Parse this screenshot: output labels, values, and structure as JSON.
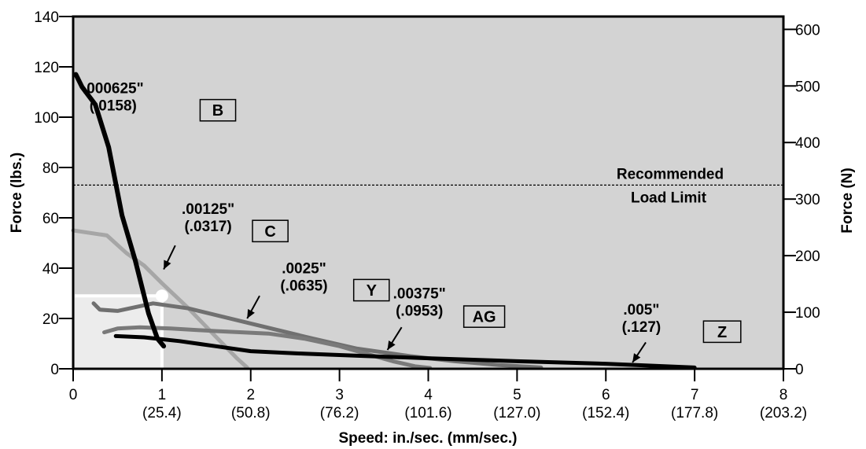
{
  "chart_data": {
    "type": "line",
    "xlabel": "Speed:  in./sec.  (mm/sec.)",
    "ylabel": "Force (lbs.)",
    "y2label": "Force (N)",
    "xlim": [
      0,
      8
    ],
    "ylim": [
      0,
      140
    ],
    "y2lim": [
      0,
      622.75
    ],
    "x_ticks": [
      0,
      1,
      2,
      3,
      4,
      5,
      6,
      7,
      8
    ],
    "x_tick_labels": [
      "0",
      "1",
      "2",
      "3",
      "4",
      "5",
      "6",
      "7",
      "8"
    ],
    "x_tick_sublabels": [
      "",
      "(25.4)",
      "(50.8)",
      "(76.2)",
      "(101.6)",
      "(127.0)",
      "(152.4)",
      "(177.8)",
      "(203.2)"
    ],
    "y_ticks": [
      0,
      20,
      40,
      60,
      80,
      100,
      120,
      140
    ],
    "y2_ticks": [
      0,
      100,
      200,
      300,
      400,
      500,
      600
    ],
    "grid": false,
    "background": "#d3d3d3",
    "reference_line": {
      "y": 73,
      "label_lines": [
        "Recommended",
        "Load Limit"
      ]
    },
    "highlight": {
      "x": 1.0,
      "y": 29
    },
    "series": [
      {
        "name": "B",
        "color": "#000000",
        "width": 6,
        "x": [
          0.03,
          0.1,
          0.25,
          0.4,
          0.55,
          0.7,
          0.85,
          0.95,
          1.02
        ],
        "y": [
          117,
          112,
          105,
          88,
          61,
          43,
          22,
          12,
          9
        ]
      },
      {
        "name": "C",
        "color": "#a6a6a6",
        "width": 5,
        "x": [
          0.0,
          0.38,
          0.6,
          0.8,
          1.0,
          1.3,
          1.6,
          1.85,
          1.96
        ],
        "y": [
          55,
          53,
          46,
          41,
          34,
          24,
          13,
          4,
          0.5
        ]
      },
      {
        "name": "Y",
        "color": "#707070",
        "width": 5,
        "x": [
          0.23,
          0.3,
          0.5,
          0.9,
          1.3,
          2.0,
          2.7,
          3.2,
          3.8,
          4.3,
          4.8,
          5.27
        ],
        "y": [
          26,
          23.5,
          23,
          26,
          24,
          18,
          12,
          8,
          5,
          3,
          1.5,
          0.5
        ]
      },
      {
        "name": "AG",
        "color": "#7a7a7a",
        "width": 5,
        "x": [
          0.35,
          0.5,
          0.75,
          1.1,
          1.6,
          2.2,
          2.6,
          3.0,
          3.3,
          3.6,
          3.85,
          4.02
        ],
        "y": [
          14.5,
          16,
          16.5,
          16,
          15,
          14,
          12,
          9,
          6,
          3,
          1,
          0.3
        ]
      },
      {
        "name": "Z",
        "color": "#000000",
        "width": 5,
        "x": [
          0.48,
          0.8,
          1.2,
          1.6,
          2.0,
          2.6,
          3.2,
          4.0,
          5.0,
          6.0,
          7.0
        ],
        "y": [
          13,
          12.5,
          11,
          9,
          7,
          6,
          5.2,
          4.2,
          3,
          2,
          0.5
        ]
      }
    ],
    "annotations": [
      {
        "id": "B",
        "line1": ".000625\"",
        "line2": "(.0158)",
        "box": "B",
        "tx": 0.45,
        "ty": 109.5,
        "bx": 1.43,
        "by": 107,
        "bw": 0.4,
        "bh": 8.5
      },
      {
        "id": "C",
        "line1": ".00125\"",
        "line2": "(.0317)",
        "box": "C",
        "tx": 1.52,
        "ty": 61.5,
        "bx": 2.02,
        "by": 59,
        "bw": 0.4,
        "bh": 8.5,
        "arrow": [
          1.15,
          49,
          1.02,
          39.5
        ]
      },
      {
        "id": "Y",
        "line1": ".0025\"",
        "line2": "(.0635)",
        "box": "Y",
        "tx": 2.6,
        "ty": 38,
        "bx": 3.16,
        "by": 35.5,
        "bw": 0.4,
        "bh": 8.5,
        "arrow": [
          2.1,
          29,
          1.96,
          20
        ]
      },
      {
        "id": "AG",
        "line1": ".00375\"",
        "line2": "(.0953)",
        "box": "AG",
        "tx": 3.9,
        "ty": 28,
        "bx": 4.4,
        "by": 25,
        "bw": 0.46,
        "bh": 8.5,
        "arrow": [
          3.7,
          16.5,
          3.54,
          7.5
        ]
      },
      {
        "id": "Z",
        "line1": ".005\"",
        "line2": "(.127)",
        "box": "Z",
        "tx": 6.4,
        "ty": 21.5,
        "bx": 7.1,
        "by": 19,
        "bw": 0.42,
        "bh": 8.5,
        "arrow": [
          6.45,
          10.5,
          6.3,
          2.5
        ]
      }
    ]
  }
}
